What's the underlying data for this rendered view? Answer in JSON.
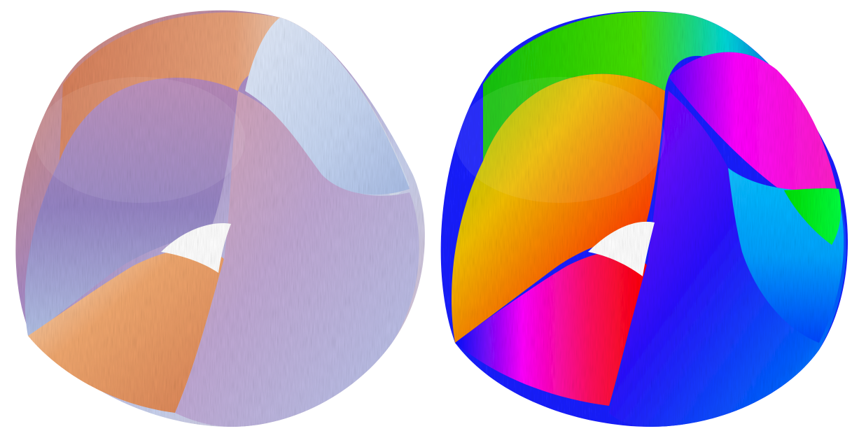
{
  "scene": {
    "background": "#ffffff",
    "panels": [
      {
        "id": "left",
        "style": "soft-pastel-shading",
        "palette": [
          "#f0a06a",
          "#a888c6",
          "#c8dcf2",
          "#f7c38a",
          "#ffffff"
        ]
      },
      {
        "id": "right",
        "style": "rainbow-hue-shading",
        "palette": [
          "#00e000",
          "#ffd000",
          "#ff2000",
          "#ff00ff",
          "#0000ff",
          "#00ffff"
        ]
      }
    ]
  }
}
